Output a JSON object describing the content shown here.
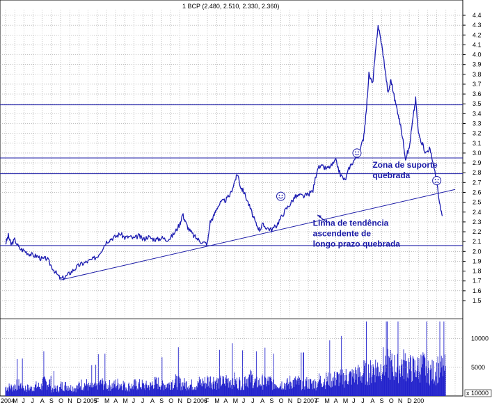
{
  "chart_data": {
    "type": "line",
    "title": "1 BCP (2.480, 2.510, 2.330, 2.360)",
    "price_axis": {
      "ylim": [
        1.4,
        4.5
      ],
      "ticks": [
        "4.4",
        "4.3",
        "4.2",
        "4.1",
        "4.0",
        "3.9",
        "3.8",
        "3.7",
        "3.6",
        "3.5",
        "3.4",
        "3.3",
        "3.2",
        "3.1",
        "3.0",
        "2.9",
        "2.8",
        "2.7",
        "2.6",
        "2.5",
        "2.4",
        "2.3",
        "2.2",
        "2.1",
        "2.0",
        "1.9",
        "1.8",
        "1.7",
        "1.6",
        "1.5"
      ]
    },
    "volume_axis": {
      "ylim": [
        0,
        13000
      ],
      "ticks": [
        {
          "label": "10000",
          "value": 10000
        },
        {
          "label": "5000",
          "value": 5000
        }
      ],
      "unit_label": "x 10000"
    },
    "x_tick_labels": [
      "2004",
      "M",
      "J",
      "J",
      "A",
      "S",
      "O",
      "N",
      "D",
      "2005",
      "F",
      "M",
      "A",
      "M",
      "J",
      "J",
      "A",
      "S",
      "O",
      "N",
      "D",
      "2006",
      "F",
      "M",
      "A",
      "M",
      "J",
      "J",
      "A",
      "S",
      "O",
      "N",
      "D",
      "2007",
      "F",
      "M",
      "A",
      "M",
      "J",
      "J",
      "A",
      "S",
      "O",
      "N",
      "D",
      "200"
    ],
    "months_range": [
      0,
      49
    ],
    "series": [
      {
        "type": "price",
        "points": [
          [
            0.0,
            2.08
          ],
          [
            0.3,
            2.16
          ],
          [
            0.6,
            2.07
          ],
          [
            1.0,
            2.12
          ],
          [
            1.5,
            2.03
          ],
          [
            2.0,
            2.01
          ],
          [
            2.5,
            1.98
          ],
          [
            3.0,
            1.96
          ],
          [
            3.5,
            1.95
          ],
          [
            4.0,
            1.92
          ],
          [
            4.5,
            1.93
          ],
          [
            5.0,
            1.85
          ],
          [
            5.5,
            1.78
          ],
          [
            6.0,
            1.72
          ],
          [
            6.5,
            1.74
          ],
          [
            7.0,
            1.78
          ],
          [
            7.5,
            1.82
          ],
          [
            8.0,
            1.86
          ],
          [
            8.5,
            1.88
          ],
          [
            9.0,
            1.9
          ],
          [
            9.5,
            1.92
          ],
          [
            10.0,
            1.95
          ],
          [
            10.5,
            2.02
          ],
          [
            11.0,
            2.1
          ],
          [
            11.5,
            2.13
          ],
          [
            12.0,
            2.15
          ],
          [
            12.5,
            2.18
          ],
          [
            13.0,
            2.14
          ],
          [
            13.5,
            2.15
          ],
          [
            14.0,
            2.13
          ],
          [
            14.5,
            2.16
          ],
          [
            15.0,
            2.12
          ],
          [
            15.5,
            2.15
          ],
          [
            16.0,
            2.13
          ],
          [
            16.5,
            2.12
          ],
          [
            17.0,
            2.14
          ],
          [
            17.5,
            2.12
          ],
          [
            18.0,
            2.14
          ],
          [
            18.5,
            2.2
          ],
          [
            19.0,
            2.28
          ],
          [
            19.3,
            2.38
          ],
          [
            19.6,
            2.3
          ],
          [
            20.0,
            2.22
          ],
          [
            20.5,
            2.16
          ],
          [
            21.0,
            2.12
          ],
          [
            21.5,
            2.09
          ],
          [
            22.0,
            2.08
          ],
          [
            22.3,
            2.3
          ],
          [
            22.7,
            2.36
          ],
          [
            23.0,
            2.44
          ],
          [
            23.5,
            2.5
          ],
          [
            24.0,
            2.52
          ],
          [
            24.5,
            2.58
          ],
          [
            25.0,
            2.72
          ],
          [
            25.3,
            2.79
          ],
          [
            25.6,
            2.66
          ],
          [
            26.0,
            2.6
          ],
          [
            26.5,
            2.48
          ],
          [
            27.0,
            2.35
          ],
          [
            27.3,
            2.28
          ],
          [
            27.7,
            2.22
          ],
          [
            28.0,
            2.27
          ],
          [
            28.5,
            2.24
          ],
          [
            29.0,
            2.22
          ],
          [
            29.5,
            2.26
          ],
          [
            30.0,
            2.34
          ],
          [
            30.5,
            2.42
          ],
          [
            31.0,
            2.48
          ],
          [
            31.5,
            2.55
          ],
          [
            32.0,
            2.57
          ],
          [
            32.5,
            2.56
          ],
          [
            33.0,
            2.58
          ],
          [
            33.5,
            2.62
          ],
          [
            34.0,
            2.85
          ],
          [
            34.5,
            2.86
          ],
          [
            35.0,
            2.84
          ],
          [
            35.5,
            2.87
          ],
          [
            36.0,
            2.92
          ],
          [
            36.5,
            2.78
          ],
          [
            37.0,
            2.72
          ],
          [
            37.5,
            2.86
          ],
          [
            38.0,
            2.93
          ],
          [
            38.5,
            2.98
          ],
          [
            39.0,
            3.15
          ],
          [
            39.3,
            3.4
          ],
          [
            39.6,
            3.8
          ],
          [
            40.0,
            3.7
          ],
          [
            40.3,
            4.0
          ],
          [
            40.6,
            4.3
          ],
          [
            41.0,
            4.1
          ],
          [
            41.3,
            3.9
          ],
          [
            41.7,
            3.6
          ],
          [
            42.0,
            3.75
          ],
          [
            42.4,
            3.55
          ],
          [
            42.8,
            3.4
          ],
          [
            43.2,
            3.2
          ],
          [
            43.6,
            2.95
          ],
          [
            44.0,
            3.05
          ],
          [
            44.4,
            3.35
          ],
          [
            44.7,
            3.55
          ],
          [
            45.0,
            3.2
          ],
          [
            45.4,
            3.1
          ],
          [
            45.8,
            3.0
          ],
          [
            46.2,
            3.05
          ],
          [
            46.6,
            2.9
          ],
          [
            47.0,
            2.7
          ],
          [
            47.3,
            2.48
          ],
          [
            47.6,
            2.36
          ]
        ]
      },
      {
        "type": "volume",
        "points": [
          [
            0,
            1900
          ],
          [
            1,
            2400
          ],
          [
            2,
            1700
          ],
          [
            3,
            2100
          ],
          [
            4,
            2900
          ],
          [
            5,
            1600
          ],
          [
            6,
            2200
          ],
          [
            7,
            1800
          ],
          [
            8,
            2500
          ],
          [
            9,
            2000
          ],
          [
            10,
            2700
          ],
          [
            11,
            2300
          ],
          [
            12,
            2600
          ],
          [
            13,
            2100
          ],
          [
            14,
            2400
          ],
          [
            15,
            2200
          ],
          [
            16,
            2800
          ],
          [
            17,
            2500
          ],
          [
            18,
            3100
          ],
          [
            19,
            2600
          ],
          [
            20,
            2400
          ],
          [
            21,
            2900
          ],
          [
            22,
            3300
          ],
          [
            23,
            3000
          ],
          [
            24,
            3400
          ],
          [
            25,
            2900
          ],
          [
            26,
            3800
          ],
          [
            27,
            2900
          ],
          [
            28,
            3100
          ],
          [
            29,
            2700
          ],
          [
            30,
            2600
          ],
          [
            31,
            3000
          ],
          [
            32,
            2800
          ],
          [
            33,
            2700
          ],
          [
            34,
            3400
          ],
          [
            35,
            3600
          ],
          [
            36,
            3900
          ],
          [
            37,
            4200
          ],
          [
            38,
            4600
          ],
          [
            39,
            5200
          ],
          [
            40,
            6100
          ],
          [
            41,
            7000
          ],
          [
            42,
            6300
          ],
          [
            43,
            6800
          ],
          [
            44,
            5900
          ],
          [
            45,
            6400
          ],
          [
            46,
            5200
          ],
          [
            47,
            6000
          ]
        ]
      }
    ],
    "reference_lines": [
      {
        "type": "horizontal",
        "y": 3.49
      },
      {
        "type": "horizontal",
        "y": 2.95
      },
      {
        "type": "horizontal",
        "y": 2.79
      },
      {
        "type": "horizontal",
        "y": 2.06
      },
      {
        "type": "trend",
        "from": [
          6.0,
          1.71
        ],
        "to": [
          49.0,
          2.63
        ]
      }
    ],
    "markers": [
      {
        "icon": "smiley-icon",
        "x": 30.0,
        "y": 2.56
      },
      {
        "icon": "smiley-icon",
        "x": 38.3,
        "y": 3.0
      },
      {
        "icon": "frown-icon",
        "x": 47.0,
        "y": 2.72
      }
    ],
    "annotations": [
      {
        "text": "Zona de suporte\nquebrada",
        "x": 40.0,
        "y": 2.85
      },
      {
        "text": "Linha de tendência\nascendente de\nlongo prazo quebrada",
        "x": 33.5,
        "y": 2.26
      }
    ],
    "grid": true,
    "legend": "none"
  }
}
